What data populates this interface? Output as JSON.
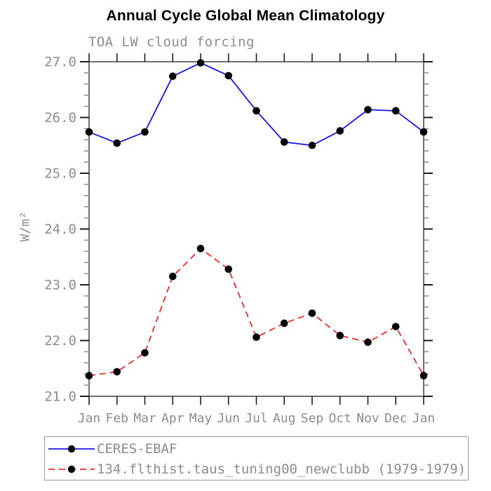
{
  "title": "Annual Cycle Global Mean Climatology",
  "subtitle": "TOA LW cloud forcing",
  "chart_data": {
    "type": "line",
    "title": "Annual Cycle Global Mean Climatology",
    "subtitle": "TOA LW cloud forcing",
    "ylabel": "W/m²",
    "xlabel": "",
    "categories": [
      "Jan",
      "Feb",
      "Mar",
      "Apr",
      "May",
      "Jun",
      "Jul",
      "Aug",
      "Sep",
      "Oct",
      "Nov",
      "Dec",
      "Jan"
    ],
    "ylim": [
      21.0,
      27.0
    ],
    "y_major_step": 1.0,
    "y_minor_step": 0.2,
    "y_tick_labels": [
      "21.0",
      "22.0",
      "23.0",
      "24.0",
      "25.0",
      "26.0",
      "27.0"
    ],
    "grid": false,
    "legend_position": "bottom",
    "tick_direction": "out",
    "colors": {
      "frame": "#6e6e6e",
      "major_tick": "#1c1c1c",
      "minor_tick": "#8f8f8f",
      "tick_text": "#8c8c8c",
      "marker": "#000000"
    },
    "series": [
      {
        "name": "CERES-EBAF",
        "color": "#1414e6",
        "line_style": "solid",
        "marker": "circle",
        "marker_color": "#000000",
        "values": [
          25.74,
          25.54,
          25.74,
          26.74,
          26.98,
          26.75,
          26.12,
          25.56,
          25.5,
          25.76,
          26.14,
          26.12,
          25.74
        ]
      },
      {
        "name": "134.flthist.taus_tuning00_newclubb (1979-1979)",
        "color": "#f02b2b",
        "line_style": "dashed",
        "marker": "circle",
        "marker_color": "#000000",
        "values": [
          21.37,
          21.44,
          21.78,
          23.15,
          23.65,
          23.28,
          22.06,
          22.31,
          22.49,
          22.09,
          21.97,
          22.25,
          21.37
        ]
      }
    ]
  }
}
